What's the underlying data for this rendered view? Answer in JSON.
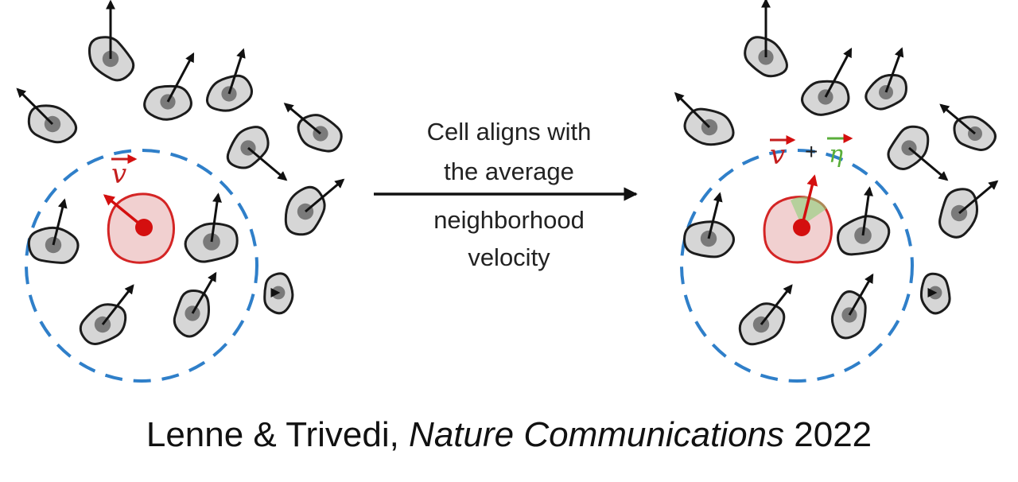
{
  "middle_label_lines": [
    "Cell aligns with",
    "the average",
    "neighborhood",
    "velocity"
  ],
  "left_panel": {
    "vector_label": "v"
  },
  "right_panel": {
    "vector_label": "v",
    "plus": "+",
    "noise_label": "η"
  },
  "citation": {
    "authors": "Lenne & Trivedi,",
    "journal": "Nature Communications",
    "year": "2022"
  },
  "colors": {
    "cell_fill": "#d6d6d6",
    "nucleus": "#7a7a7a",
    "neighborhood_circle": "#2f7fc9",
    "focal_cell": "#d40f0f",
    "noise_vector": "#5aae3a"
  }
}
